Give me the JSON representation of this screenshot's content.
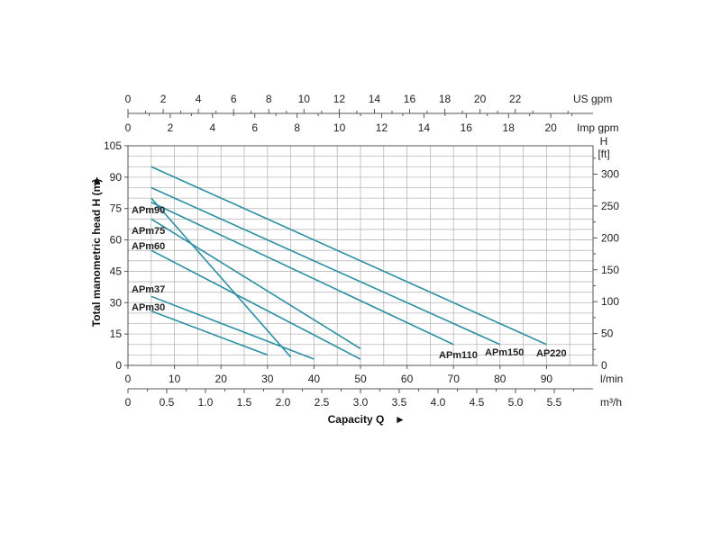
{
  "colors": {
    "curve": "#2a8fa3",
    "grid": "#b8b8b8",
    "axis": "#555555",
    "text": "#222222"
  },
  "chart_data": {
    "type": "line",
    "title": "",
    "xlabel": "Capacity Q",
    "ylabel": "Total manometric head H (m)",
    "x_unit": "l/min",
    "y_unit": "m",
    "xlim": [
      0,
      100
    ],
    "ylim": [
      0,
      105
    ],
    "x_ticks": [
      0,
      10,
      20,
      30,
      40,
      50,
      60,
      70,
      80,
      90
    ],
    "y_ticks": [
      0,
      15,
      30,
      45,
      60,
      75,
      90,
      105
    ],
    "secondary_axes": {
      "us_gpm": {
        "label": "US gpm",
        "ticks": [
          0,
          2,
          4,
          6,
          8,
          10,
          12,
          14,
          16,
          18,
          20,
          22
        ]
      },
      "imp_gpm": {
        "label": "Imp gpm",
        "ticks": [
          0,
          2,
          4,
          6,
          8,
          10,
          12,
          14,
          16,
          18,
          20
        ]
      },
      "ft": {
        "label_top": "H",
        "label_unit": "[ft]",
        "ticks": [
          0,
          50,
          100,
          150,
          200,
          250,
          300
        ]
      },
      "m3h": {
        "label": "m³/h",
        "ticks": [
          "0",
          "0.5",
          "1.0",
          "1.5",
          "2.0",
          "2.5",
          "3.0",
          "3.5",
          "4.0",
          "4.5",
          "5.0",
          "5.5"
        ]
      }
    },
    "series": [
      {
        "name": "APm30",
        "x": [
          5,
          30
        ],
        "y": [
          26,
          5
        ]
      },
      {
        "name": "APm37",
        "x": [
          5,
          40
        ],
        "y": [
          33,
          3
        ]
      },
      {
        "name": "APm60",
        "x": [
          5,
          50
        ],
        "y": [
          55,
          3
        ]
      },
      {
        "name": "APm75",
        "x": [
          5,
          50
        ],
        "y": [
          70,
          8
        ]
      },
      {
        "name": "APm90",
        "x": [
          5,
          35
        ],
        "y": [
          80,
          4
        ]
      },
      {
        "name": "APm110",
        "x": [
          5,
          70
        ],
        "y": [
          78,
          10
        ]
      },
      {
        "name": "APm150",
        "x": [
          5,
          80
        ],
        "y": [
          85,
          10
        ]
      },
      {
        "name": "AP220",
        "x": [
          5,
          90
        ],
        "y": [
          95,
          10
        ]
      }
    ]
  }
}
